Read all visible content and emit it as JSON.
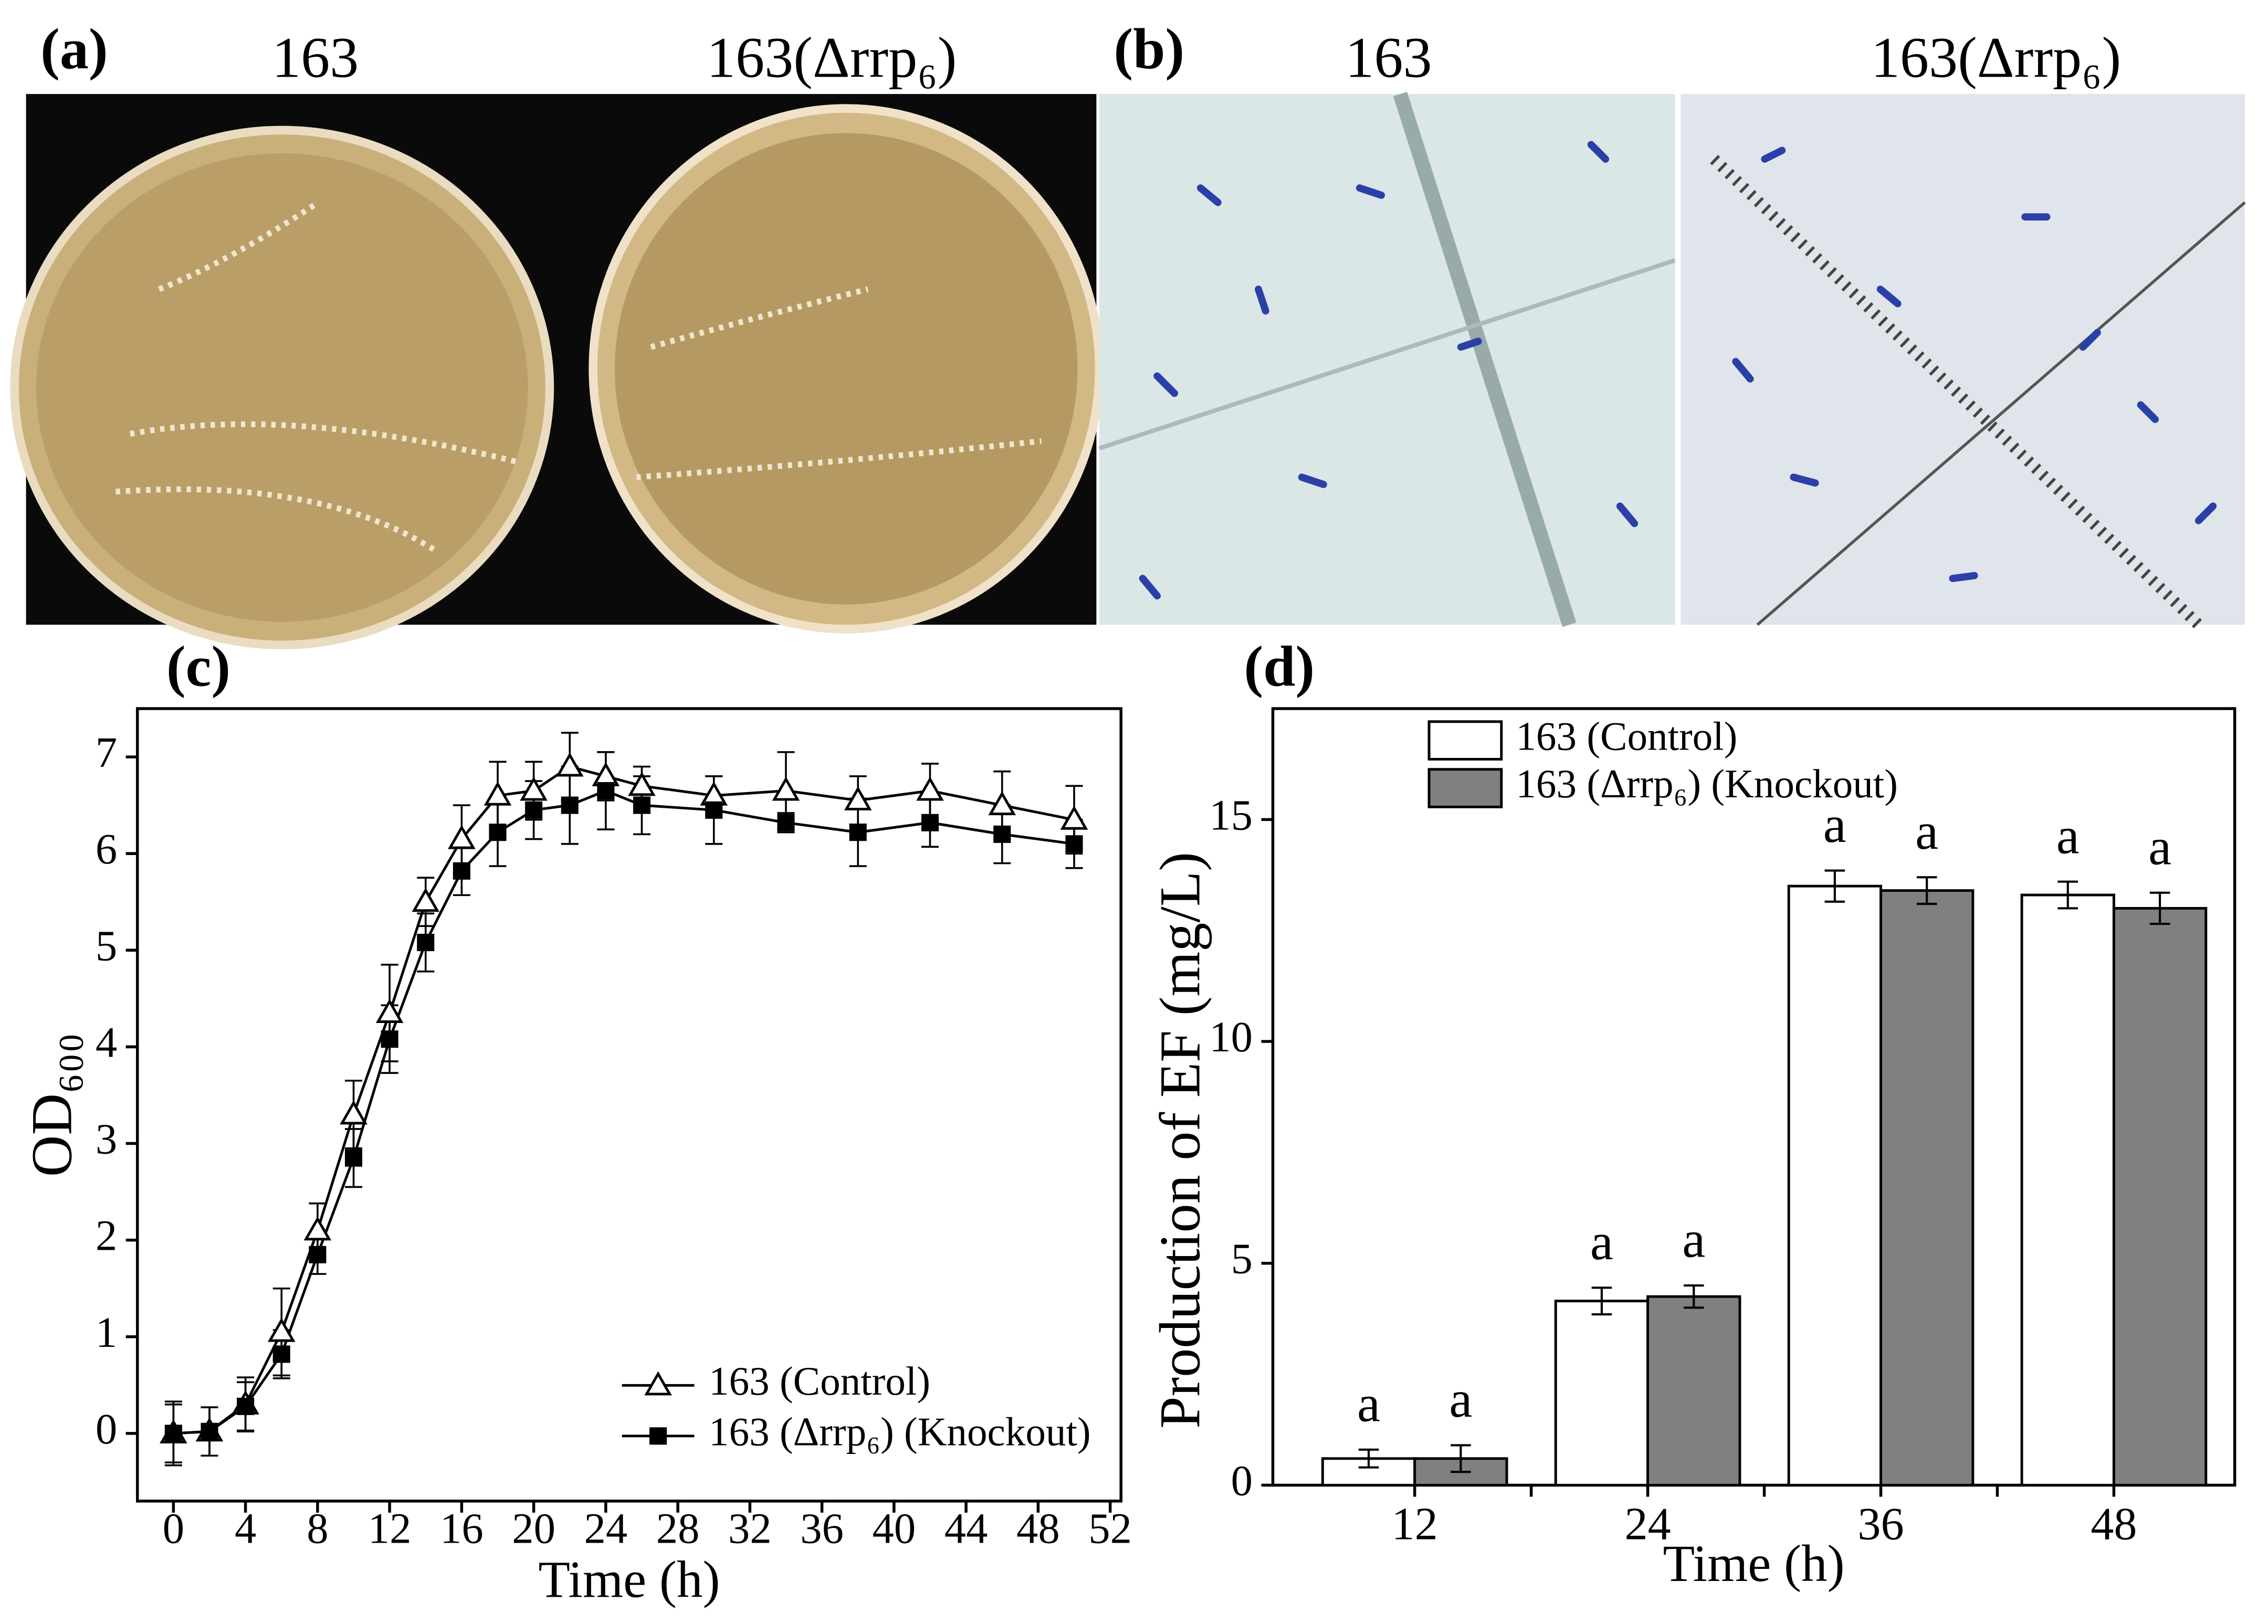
{
  "panels": {
    "a": {
      "label": "(a)",
      "left": "163",
      "right": "163(Δrrp₆)"
    },
    "b": {
      "label": "(b)",
      "left": "163",
      "right": "163(Δrrp₆)"
    },
    "c": {
      "label": "(c)"
    },
    "d": {
      "label": "(d)"
    }
  },
  "chart_data": [
    {
      "type": "line",
      "xlabel": "Time (h)",
      "ylabel": "OD₆₀₀",
      "x": [
        0,
        2,
        4,
        6,
        8,
        10,
        12,
        14,
        16,
        18,
        20,
        22,
        24,
        26,
        30,
        34,
        38,
        42,
        46,
        50
      ],
      "series": [
        {
          "name": "163 (Control)",
          "color": "#000000",
          "marker": "triangle-open",
          "values": [
            0,
            0.02,
            0.3,
            1.05,
            2.1,
            3.3,
            4.35,
            5.5,
            6.15,
            6.6,
            6.65,
            6.9,
            6.8,
            6.7,
            6.6,
            6.65,
            6.55,
            6.65,
            6.5,
            6.35
          ],
          "errors": [
            0.33,
            0.25,
            0.28,
            0.45,
            0.28,
            0.35,
            0.5,
            0.25,
            0.35,
            0.35,
            0.3,
            0.35,
            0.25,
            0.2,
            0.2,
            0.4,
            0.25,
            0.28,
            0.35,
            0.35
          ]
        },
        {
          "name": "163 (Δrrp₆) (Knockout)",
          "color": "#000000",
          "marker": "square",
          "values": [
            0,
            0.02,
            0.28,
            0.82,
            1.85,
            2.85,
            4.08,
            5.08,
            5.82,
            6.22,
            6.45,
            6.5,
            6.65,
            6.5,
            6.45,
            6.32,
            6.22,
            6.32,
            6.2,
            6.1
          ],
          "errors": [
            0.3,
            0.25,
            0.25,
            0.25,
            0.2,
            0.3,
            0.35,
            0.3,
            0.25,
            0.35,
            0.3,
            0.4,
            0.4,
            0.3,
            0.35,
            0.1,
            0.35,
            0.25,
            0.3,
            0.25
          ]
        }
      ],
      "xlim": [
        -2,
        52.6
      ],
      "xticks": [
        0,
        4,
        8,
        12,
        16,
        20,
        24,
        28,
        32,
        36,
        40,
        44,
        48,
        52
      ],
      "ylim": [
        -0.7,
        7.5
      ],
      "yticks": [
        0,
        1,
        2,
        3,
        4,
        5,
        6,
        7
      ],
      "legend": "lower right"
    },
    {
      "type": "bar",
      "xlabel": "Time (h)",
      "ylabel": "Production of  EF (mg/L)",
      "categories": [
        "12",
        "24",
        "36",
        "48"
      ],
      "series": [
        {
          "name": "163 (Control)",
          "color": "#ffffff",
          "values": [
            0.6,
            4.15,
            13.5,
            13.3
          ],
          "errors": [
            0.2,
            0.3,
            0.35,
            0.3
          ],
          "letters": [
            "a",
            "a",
            "a",
            "a"
          ]
        },
        {
          "name": "163 (Δrrp₆) (Knockout)",
          "color": "#808080",
          "values": [
            0.6,
            4.25,
            13.4,
            13.0
          ],
          "errors": [
            0.3,
            0.25,
            0.3,
            0.35
          ],
          "letters": [
            "a",
            "a",
            "a",
            "a"
          ]
        }
      ],
      "ylim": [
        0,
        17.5
      ],
      "yticks": [
        0,
        5,
        10,
        15
      ],
      "legend": "upper left"
    }
  ]
}
